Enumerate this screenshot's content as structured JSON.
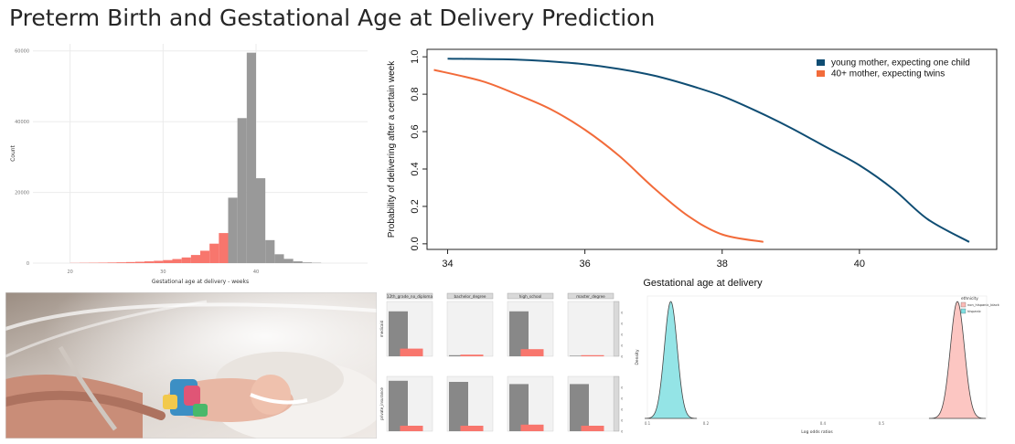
{
  "page": {
    "title": "Preterm Birth and Gestational Age at Delivery Prediction"
  },
  "photo": {
    "icon": "newborn-in-incubator-photo"
  },
  "chart_data": [
    {
      "id": "histogram",
      "type": "bar",
      "title": "",
      "xlabel": "Gestational age at delivery - weeks",
      "ylabel": "Count",
      "xlim": [
        16,
        52
      ],
      "ylim": [
        0,
        62000
      ],
      "xticks": [
        "20",
        "30",
        "40"
      ],
      "yticks": [
        "0",
        "20000",
        "40000",
        "60000"
      ],
      "bin_start": 20,
      "bin_width": 1,
      "preterm_before": 37,
      "values": [
        50,
        80,
        100,
        130,
        170,
        220,
        300,
        380,
        500,
        650,
        850,
        1150,
        1600,
        2300,
        3500,
        5500,
        8500,
        18500,
        41000,
        59500,
        24000,
        6500,
        2500,
        1200,
        500,
        200,
        100
      ],
      "colors": {
        "preterm": "#f8766d",
        "term": "#999999"
      },
      "grid": true
    },
    {
      "id": "delivery-probability",
      "type": "line",
      "title": "",
      "xlabel": "Gestational age at delivery",
      "ylabel": "Probability of delivering after a certain week",
      "xlim": [
        33.7,
        42.0
      ],
      "ylim": [
        -0.03,
        1.04
      ],
      "xticks": [
        "34",
        "36",
        "38",
        "40"
      ],
      "yticks": [
        "0.0",
        "0.2",
        "0.4",
        "0.6",
        "0.8",
        "1.0"
      ],
      "legend_placement": "top-right",
      "series": [
        {
          "name": "young mother, expecting one child",
          "color": "#0f4d73",
          "points": [
            [
              34,
              0.99
            ],
            [
              35,
              0.985
            ],
            [
              35.5,
              0.975
            ],
            [
              36,
              0.96
            ],
            [
              36.5,
              0.935
            ],
            [
              37,
              0.9
            ],
            [
              37.5,
              0.85
            ],
            [
              38,
              0.79
            ],
            [
              38.5,
              0.71
            ],
            [
              39,
              0.62
            ],
            [
              39.5,
              0.52
            ],
            [
              40,
              0.42
            ],
            [
              40.5,
              0.29
            ],
            [
              41,
              0.13
            ],
            [
              41.6,
              0.01
            ]
          ]
        },
        {
          "name": "40+ mother, expecting twins",
          "color": "#f26b3a",
          "points": [
            [
              33.8,
              0.93
            ],
            [
              34.5,
              0.87
            ],
            [
              35,
              0.8
            ],
            [
              35.5,
              0.72
            ],
            [
              36,
              0.61
            ],
            [
              36.5,
              0.47
            ],
            [
              37,
              0.3
            ],
            [
              37.5,
              0.15
            ],
            [
              38,
              0.05
            ],
            [
              38.6,
              0.01
            ]
          ]
        }
      ]
    },
    {
      "id": "facet-bars",
      "type": "bar",
      "title": "",
      "facets_top": [
        "12th_grade_no_diploma",
        "bachelor_degree",
        "high_school",
        "master_degree"
      ],
      "row_labels": [
        "medicaid",
        "private_insurance"
      ],
      "ylim": [
        0,
        1
      ],
      "yticks": [
        "0.0",
        "0.2",
        "0.4",
        "0.6",
        "0.8"
      ],
      "facet_values": [
        [
          [
            0.82,
            0.14
          ],
          [
            0.02,
            0.03
          ],
          [
            0.82,
            0.13
          ],
          [
            0.01,
            0.02
          ]
        ],
        [
          [
            0.92,
            0.1
          ],
          [
            0.9,
            0.1
          ],
          [
            0.86,
            0.12
          ],
          [
            0.86,
            0.1
          ]
        ]
      ],
      "colors": {
        "primary": "#888888",
        "secondary": "#f8766d"
      }
    },
    {
      "id": "density",
      "type": "area",
      "title": "",
      "xlabel": "Log odds ratios",
      "ylabel": "Density",
      "legend_title": "ethnicity",
      "legend_placement": "top-right",
      "series": [
        {
          "name": "non_hispanic_black",
          "color": "#f8766d",
          "mean": 0.63,
          "sd": 0.012
        },
        {
          "name": "hispanic",
          "color": "#00bfc4",
          "mean": 0.14,
          "sd": 0.011
        }
      ],
      "xlim": [
        0.1,
        0.68
      ],
      "xticks": [
        "0.1",
        "0.2",
        "0.4",
        "0.5"
      ]
    }
  ]
}
